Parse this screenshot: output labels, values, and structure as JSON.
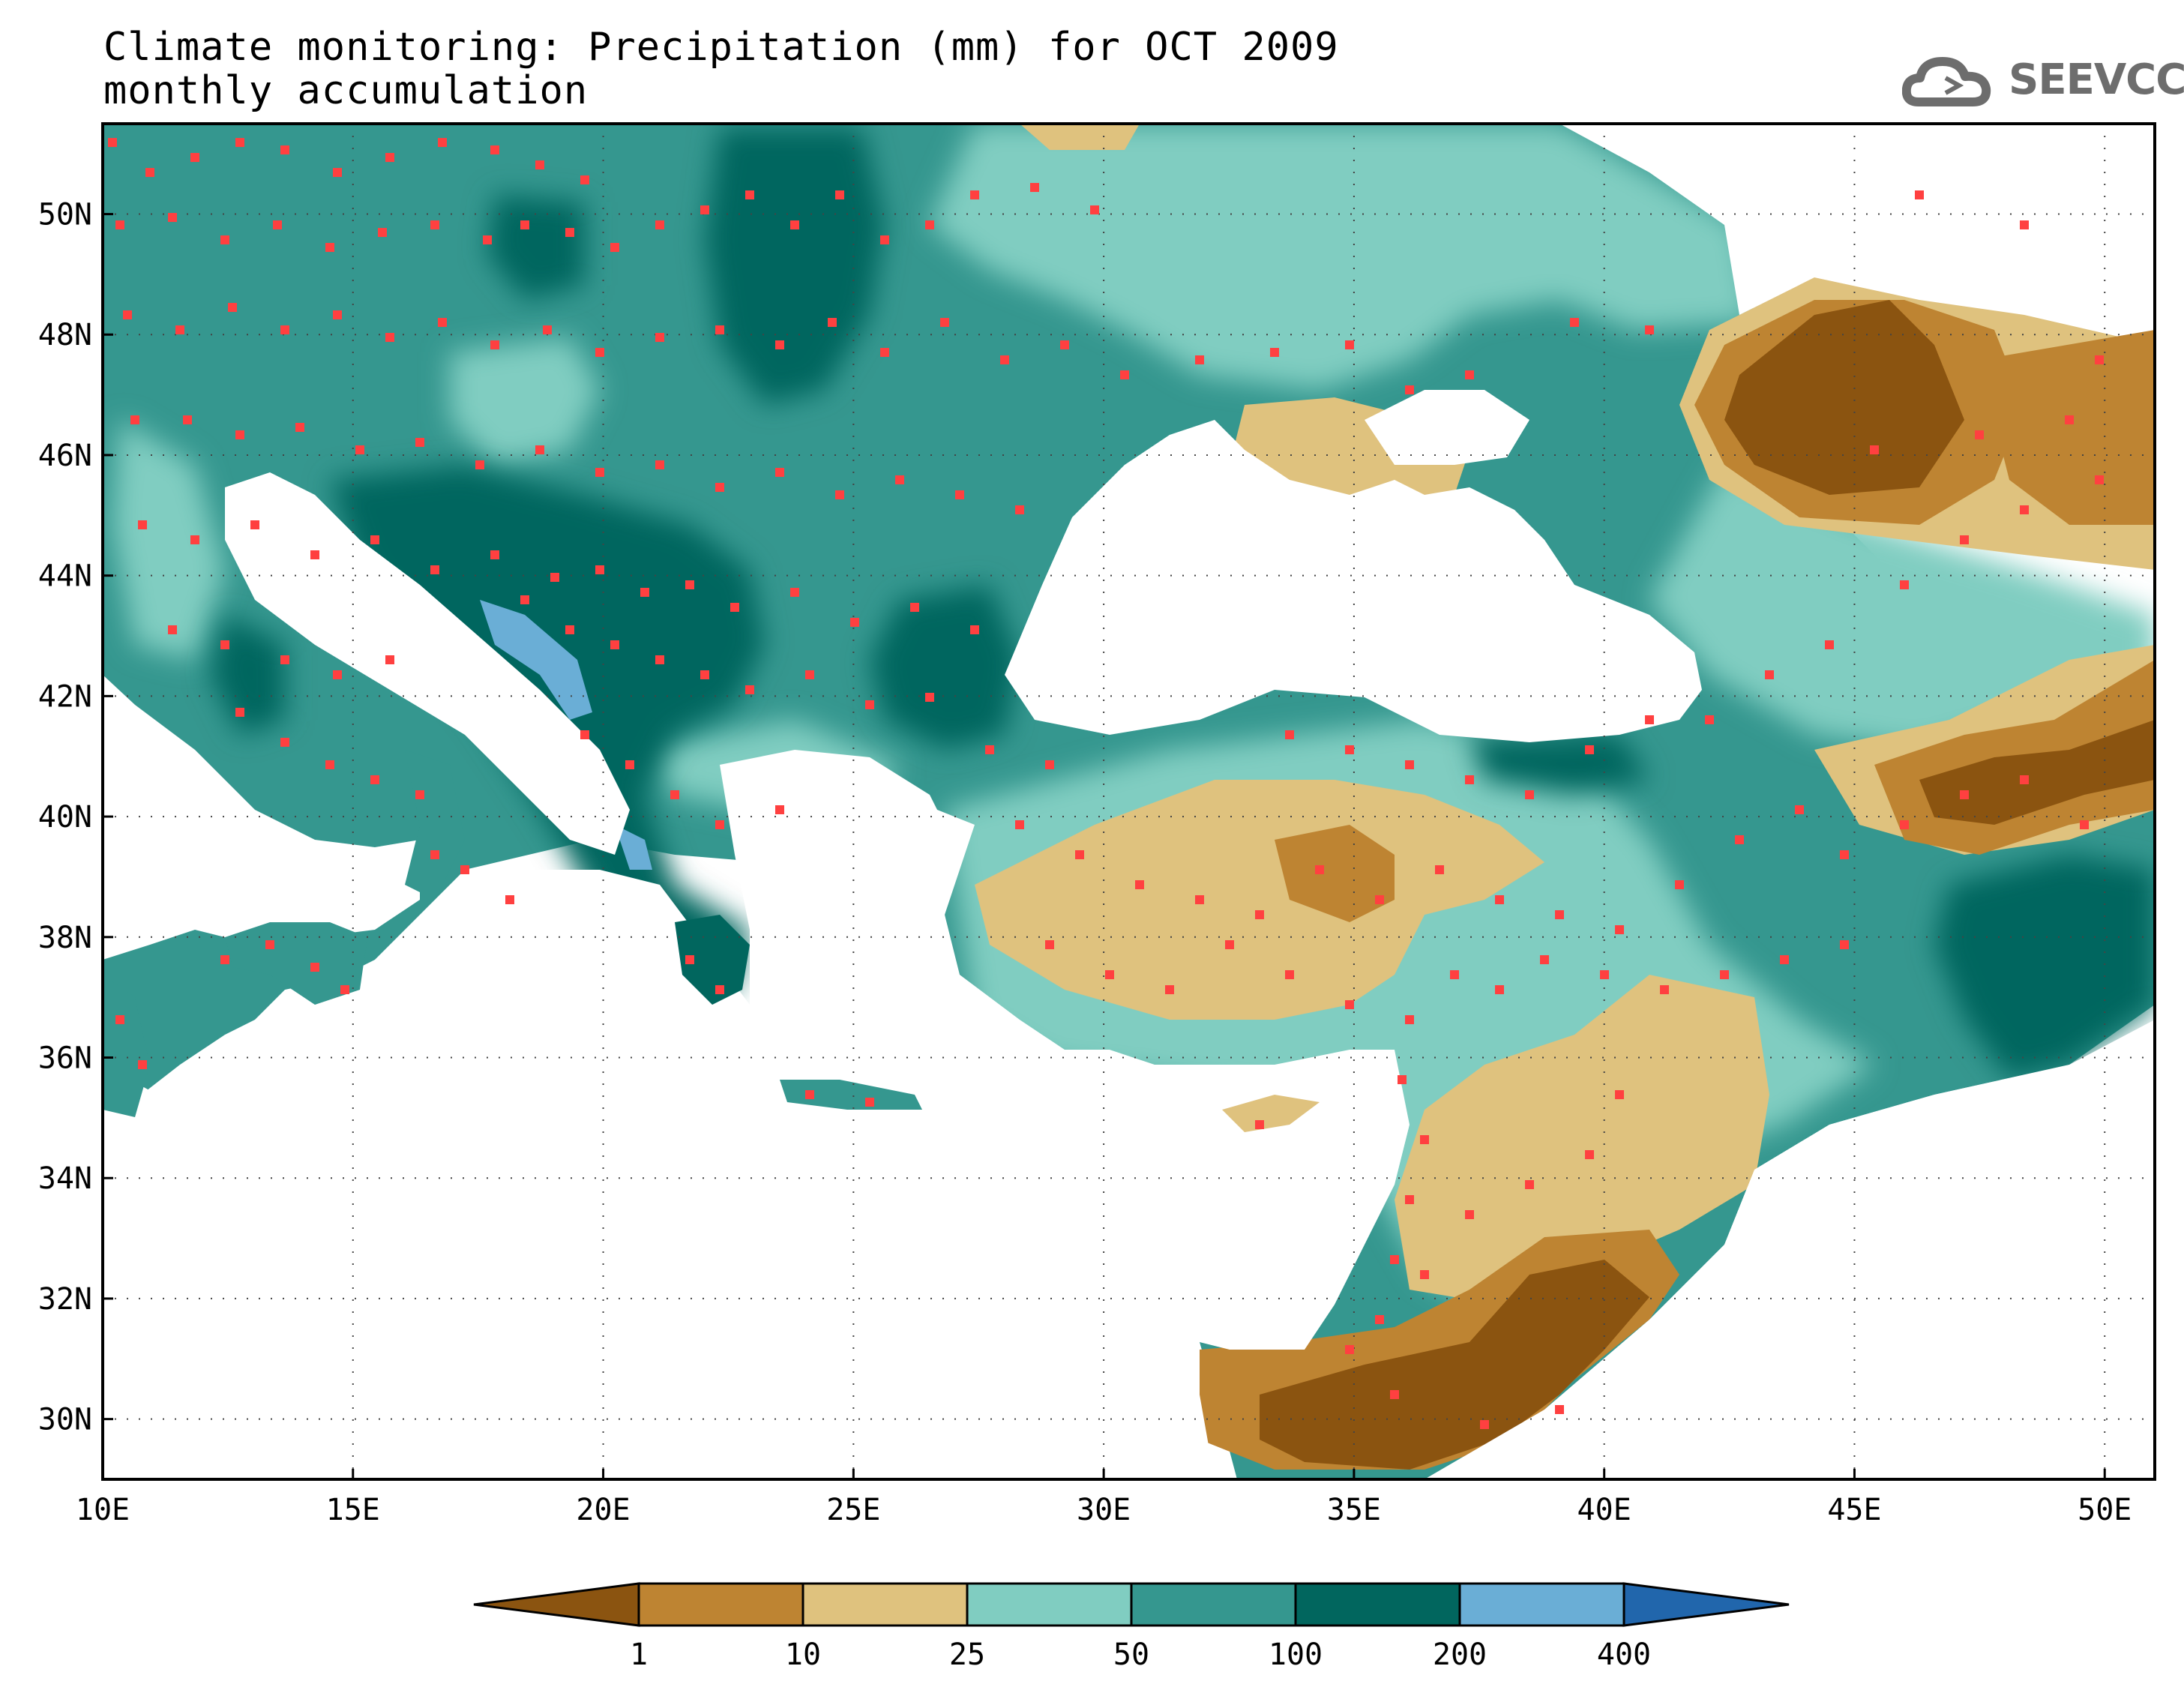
{
  "title": {
    "line1": "Climate monitoring: Precipitation (mm) for OCT 2009",
    "line2": "monthly accumulation"
  },
  "logo": {
    "text": "SEEVCCC",
    "icon": "cloud-icon"
  },
  "axes": {
    "x_ticks": [
      "10E",
      "15E",
      "20E",
      "25E",
      "30E",
      "35E",
      "40E",
      "45E",
      "50E"
    ],
    "y_ticks": [
      "50N",
      "48N",
      "46N",
      "44N",
      "42N",
      "40N",
      "38N",
      "36N",
      "34N",
      "32N",
      "30N"
    ],
    "lon_range": [
      10,
      51
    ],
    "lat_range": [
      29,
      51.5
    ],
    "grid": "dotted"
  },
  "colorbar": {
    "labels": [
      "1",
      "10",
      "25",
      "50",
      "100",
      "200",
      "400"
    ],
    "colors": [
      "#8b5410",
      "#be8432",
      "#dfc27e",
      "#80cdc1",
      "#35978f",
      "#01665e",
      "#6aaed6",
      "#2166ac"
    ]
  },
  "palette": {
    "very_low": "#8b5410",
    "low": "#be8432",
    "mid_low": "#dfc27e",
    "mid": "#80cdc1",
    "mid_high": "#35978f",
    "high": "#01665e",
    "very_high": "#6aaed6",
    "station": "#ff4040"
  }
}
